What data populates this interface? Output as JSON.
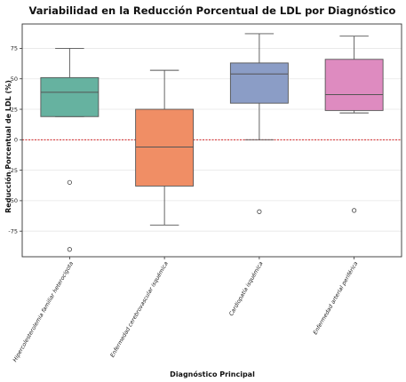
{
  "chart_data": {
    "type": "box",
    "title": "Variabilidad en la Reducción Porcentual de LDL por Diagnóstico",
    "xlabel": "Diagnóstico Principal",
    "ylabel": "Reducción Porcentual de LDL (%)",
    "ylim": [
      -96,
      95
    ],
    "yticks": [
      -75,
      -50,
      -25,
      0,
      25,
      50,
      75
    ],
    "reference_line": {
      "y": 0,
      "color": "#d62728",
      "style": "dotted"
    },
    "grid": "horizontal",
    "categories": [
      "Hipercolesterolemia familiar heterocigota",
      "Enfermedad cerebrovascular isquémica",
      "Cardiopatía isquémica",
      "Enfermedad arterial periférica"
    ],
    "boxes": [
      {
        "whisker_low": 19,
        "q1": 19,
        "median": 39,
        "q3": 51,
        "whisker_high": 75,
        "outliers": [
          -35,
          -90
        ],
        "color": "#66b2a0"
      },
      {
        "whisker_low": -70,
        "q1": -38,
        "median": -6,
        "q3": 25,
        "whisker_high": 57,
        "outliers": [],
        "color": "#f08e65"
      },
      {
        "whisker_low": 0,
        "q1": 30,
        "median": 54,
        "q3": 63,
        "whisker_high": 87,
        "outliers": [
          -59
        ],
        "color": "#8b9dc6"
      },
      {
        "whisker_low": 22,
        "q1": 24,
        "median": 37,
        "q3": 66,
        "whisker_high": 85,
        "outliers": [
          -58
        ],
        "color": "#de8bc0"
      }
    ]
  }
}
